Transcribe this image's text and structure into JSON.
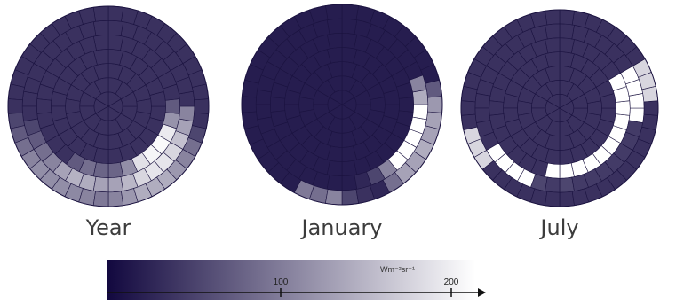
{
  "chart_data": {
    "type": "heatmap",
    "colorbar": {
      "unit": "Wm⁻²sr⁻¹",
      "ticks": [
        100,
        200
      ],
      "range": [
        0,
        240
      ],
      "color_low": "#12083f",
      "color_high": "#ffffff"
    },
    "panels": [
      {
        "caption": "Year",
        "rings": [
          [
            40,
            40,
            40,
            40,
            40,
            40
          ],
          [
            40,
            40,
            40,
            40,
            40,
            40,
            40,
            40,
            40,
            40,
            40,
            40
          ],
          [
            40,
            40,
            40,
            40,
            40,
            40,
            40,
            40,
            40,
            40,
            40,
            40,
            40,
            40,
            40,
            40,
            40,
            40
          ],
          [
            40,
            40,
            40,
            40,
            40,
            40,
            40,
            40,
            40,
            40,
            40,
            40,
            40,
            40,
            40,
            40,
            40,
            40,
            40,
            40,
            40,
            40,
            40,
            40
          ],
          [
            90,
            130,
            210,
            230,
            235,
            220,
            135,
            80,
            40,
            40,
            40,
            40,
            40,
            40,
            40,
            40,
            40,
            40,
            40,
            40,
            40,
            40,
            40,
            40,
            40,
            40,
            40,
            80,
            100,
            90
          ],
          [
            150,
            170,
            200,
            215,
            215,
            200,
            180,
            150,
            120,
            40,
            40,
            40,
            40,
            40,
            40,
            40,
            40,
            40,
            40,
            40,
            40,
            40,
            40,
            40,
            40,
            40,
            40,
            40,
            60,
            80,
            100,
            120,
            150,
            165,
            160,
            150
          ],
          [
            120,
            140,
            160,
            160,
            160,
            140,
            120,
            100,
            60,
            40,
            40,
            40,
            40,
            40,
            40,
            40,
            40,
            40,
            40,
            40,
            40,
            40,
            40,
            40,
            40,
            40,
            40,
            40,
            40,
            40,
            40,
            40,
            60,
            80,
            100,
            120,
            130,
            130,
            130,
            125,
            120,
            110
          ]
        ]
      },
      {
        "caption": "January",
        "rings": [
          [
            20,
            20,
            20,
            20,
            20,
            20
          ],
          [
            20,
            20,
            20,
            20,
            20,
            20,
            20,
            20,
            20,
            20,
            20,
            20
          ],
          [
            20,
            20,
            20,
            20,
            20,
            20,
            20,
            20,
            20,
            20,
            20,
            20,
            20,
            20,
            20,
            20,
            20,
            20
          ],
          [
            20,
            20,
            20,
            20,
            20,
            20,
            20,
            20,
            20,
            20,
            20,
            20,
            20,
            20,
            20,
            20,
            20,
            20,
            20,
            20,
            20,
            20,
            20,
            20
          ],
          [
            20,
            20,
            20,
            20,
            20,
            20,
            20,
            20,
            20,
            20,
            20,
            20,
            20,
            20,
            20,
            20,
            20,
            20,
            20,
            20,
            20,
            20,
            20,
            20,
            20,
            20,
            20,
            20,
            20,
            20
          ],
          [
            20,
            30,
            60,
            120,
            240,
            240,
            240,
            240,
            240,
            160,
            120,
            20,
            20,
            20,
            20,
            20,
            20,
            20,
            20,
            20,
            20,
            20,
            20,
            20,
            20,
            20,
            20,
            20,
            20,
            20,
            20,
            20,
            20,
            20,
            20,
            20
          ],
          [
            60,
            40,
            30,
            100,
            150,
            150,
            160,
            150,
            150,
            140,
            80,
            20,
            20,
            20,
            20,
            20,
            20,
            20,
            20,
            20,
            20,
            20,
            20,
            20,
            20,
            20,
            20,
            20,
            20,
            20,
            20,
            20,
            20,
            20,
            20,
            110,
            100,
            120
          ]
        ]
      },
      {
        "caption": "July",
        "rings": [
          [
            40,
            40,
            40,
            40,
            40,
            40
          ],
          [
            40,
            40,
            40,
            40,
            40,
            40,
            40,
            40,
            40,
            40,
            40,
            40
          ],
          [
            40,
            40,
            40,
            40,
            40,
            40,
            40,
            40,
            40,
            40,
            40,
            40,
            40,
            40,
            40,
            40,
            40,
            40
          ],
          [
            40,
            40,
            40,
            40,
            40,
            40,
            40,
            40,
            40,
            40,
            40,
            40,
            40,
            40,
            40,
            40,
            40,
            40,
            40,
            40,
            40,
            40,
            40,
            40
          ],
          [
            240,
            240,
            240,
            240,
            240,
            240,
            240,
            240,
            240,
            240,
            40,
            40,
            40,
            40,
            40,
            40,
            40,
            40,
            40,
            40,
            40,
            40,
            40,
            40,
            40,
            40,
            40,
            40,
            40,
            240
          ],
          [
            60,
            50,
            50,
            50,
            50,
            50,
            50,
            50,
            240,
            240,
            240,
            240,
            40,
            40,
            40,
            40,
            40,
            40,
            40,
            40,
            40,
            40,
            40,
            40,
            40,
            40,
            40,
            40,
            40,
            40,
            240,
            240,
            240,
            240,
            60,
            50
          ],
          [
            40,
            40,
            40,
            40,
            40,
            40,
            40,
            40,
            40,
            40,
            40,
            200,
            200,
            200,
            40,
            40,
            40,
            40,
            40,
            40,
            40,
            40,
            40,
            40,
            40,
            40,
            40,
            40,
            40,
            40,
            40,
            40,
            40,
            200,
            200,
            200,
            40,
            40,
            40,
            40,
            40,
            40
          ]
        ]
      }
    ]
  }
}
